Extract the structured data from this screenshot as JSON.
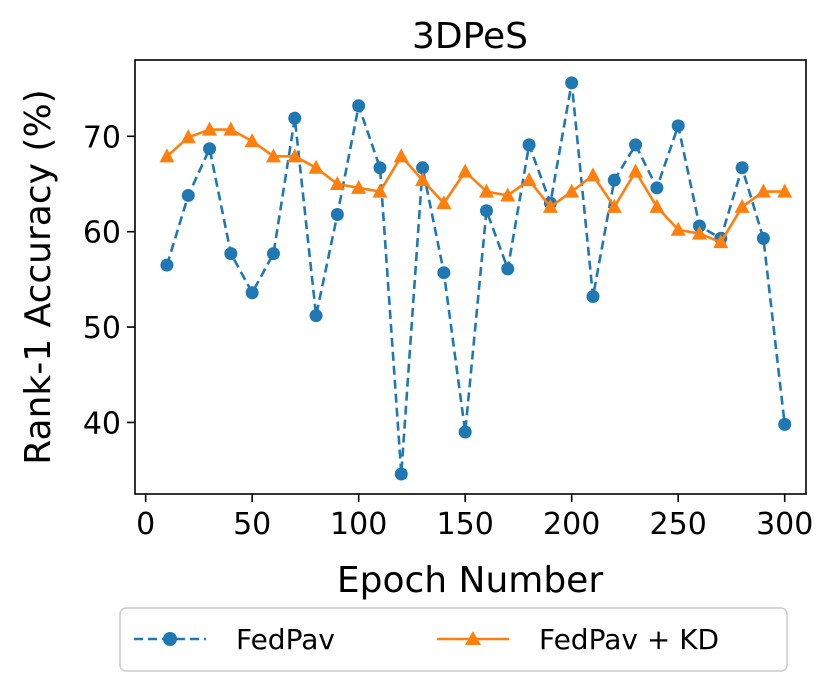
{
  "chart_data": {
    "type": "line",
    "title": "3DPeS",
    "xlabel": "Epoch Number",
    "ylabel": "Rank-1 Accuracy (%)",
    "xlim": [
      -5,
      310
    ],
    "ylim": [
      32.5,
      78
    ],
    "xticks": [
      0,
      50,
      100,
      150,
      200,
      250,
      300
    ],
    "yticks": [
      40,
      50,
      60,
      70
    ],
    "grid": false,
    "legend_position": "bottom-center",
    "x": [
      10,
      20,
      30,
      40,
      50,
      60,
      70,
      80,
      90,
      100,
      110,
      120,
      130,
      140,
      150,
      160,
      170,
      180,
      190,
      200,
      210,
      220,
      230,
      240,
      250,
      260,
      270,
      280,
      290,
      300
    ],
    "series": [
      {
        "name": "FedPav",
        "color": "#1f77b4",
        "line_style": "dashed",
        "marker": "circle",
        "values": [
          56.5,
          63.8,
          68.7,
          57.7,
          53.6,
          57.7,
          71.9,
          51.2,
          61.8,
          73.2,
          66.7,
          34.6,
          66.7,
          55.7,
          39.0,
          62.2,
          56.1,
          69.1,
          63.0,
          75.6,
          53.2,
          65.4,
          69.1,
          64.6,
          71.1,
          60.6,
          59.3,
          66.7,
          59.3,
          39.8
        ]
      },
      {
        "name": "FedPav + KD",
        "color": "#ff7f0e",
        "line_style": "solid",
        "marker": "triangle",
        "values": [
          67.9,
          69.9,
          70.7,
          70.7,
          69.5,
          67.9,
          67.9,
          66.7,
          65.0,
          64.6,
          64.2,
          67.9,
          65.4,
          63.0,
          66.3,
          64.2,
          63.8,
          65.4,
          62.6,
          64.2,
          65.9,
          62.6,
          66.3,
          62.6,
          60.2,
          59.8,
          58.9,
          62.6,
          64.2,
          64.2
        ]
      }
    ]
  }
}
